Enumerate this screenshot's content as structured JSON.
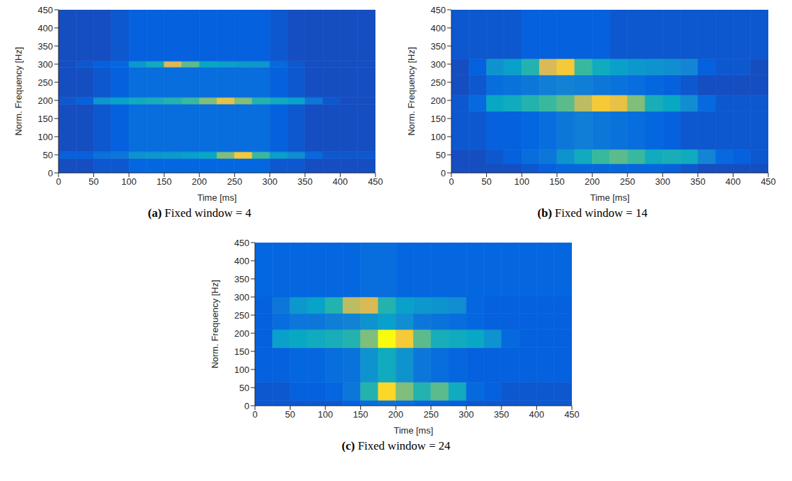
{
  "chart_data": [
    {
      "type": "heatmap",
      "letter": "(a)",
      "caption": "Fixed window = 4",
      "x_label": "Time [ms]",
      "y_label": "Norm. Frequency [Hz]",
      "xlim": [
        0,
        450
      ],
      "ylim": [
        0,
        450
      ],
      "xticks": [
        0,
        50,
        100,
        150,
        200,
        250,
        300,
        350,
        400,
        450
      ],
      "yticks": [
        0,
        50,
        100,
        150,
        200,
        250,
        300,
        350,
        400,
        450
      ],
      "x_edges": [
        0,
        25,
        50,
        75,
        100,
        125,
        150,
        175,
        200,
        225,
        250,
        275,
        300,
        325,
        350,
        375,
        400,
        425,
        450
      ],
      "y_edges": [
        0,
        40,
        58,
        190,
        208,
        292,
        308,
        450
      ],
      "cells": [
        [
          0.08,
          0.08,
          0.1,
          0.1,
          0.14,
          0.14,
          0.14,
          0.14,
          0.14,
          0.14,
          0.14,
          0.14,
          0.1,
          0.1,
          0.08,
          0.08,
          0.08,
          0.08
        ],
        [
          0.12,
          0.12,
          0.18,
          0.2,
          0.3,
          0.32,
          0.33,
          0.35,
          0.38,
          0.6,
          0.85,
          0.5,
          0.35,
          0.28,
          0.15,
          0.1,
          0.1,
          0.1
        ],
        [
          0.08,
          0.08,
          0.1,
          0.12,
          0.16,
          0.16,
          0.16,
          0.16,
          0.16,
          0.16,
          0.16,
          0.16,
          0.12,
          0.1,
          0.08,
          0.08,
          0.08,
          0.08
        ],
        [
          0.1,
          0.12,
          0.32,
          0.36,
          0.4,
          0.42,
          0.45,
          0.5,
          0.6,
          0.8,
          0.6,
          0.45,
          0.4,
          0.36,
          0.2,
          0.1,
          0.08,
          0.08
        ],
        [
          0.08,
          0.08,
          0.1,
          0.12,
          0.16,
          0.16,
          0.16,
          0.16,
          0.16,
          0.16,
          0.16,
          0.16,
          0.12,
          0.1,
          0.08,
          0.08,
          0.08,
          0.08
        ],
        [
          0.08,
          0.1,
          0.12,
          0.14,
          0.32,
          0.4,
          0.75,
          0.55,
          0.38,
          0.35,
          0.33,
          0.32,
          0.15,
          0.1,
          0.08,
          0.08,
          0.08,
          0.08
        ],
        [
          0.08,
          0.08,
          0.08,
          0.1,
          0.12,
          0.12,
          0.12,
          0.12,
          0.12,
          0.12,
          0.12,
          0.12,
          0.1,
          0.08,
          0.08,
          0.08,
          0.08,
          0.08
        ]
      ]
    },
    {
      "type": "heatmap",
      "letter": "(b)",
      "caption": "Fixed window = 14",
      "x_label": "Time [ms]",
      "y_label": "Norm. Frequency [Hz]",
      "xlim": [
        0,
        450
      ],
      "ylim": [
        0,
        450
      ],
      "xticks": [
        0,
        50,
        100,
        150,
        200,
        250,
        300,
        350,
        400,
        450
      ],
      "yticks": [
        0,
        50,
        100,
        150,
        200,
        250,
        300,
        350,
        400,
        450
      ],
      "x_edges": [
        0,
        25,
        50,
        75,
        100,
        125,
        150,
        175,
        200,
        225,
        250,
        275,
        300,
        325,
        350,
        375,
        400,
        425,
        450
      ],
      "y_edges": [
        0,
        25,
        65,
        170,
        215,
        270,
        315,
        450
      ],
      "cells": [
        [
          0.08,
          0.08,
          0.08,
          0.08,
          0.1,
          0.12,
          0.14,
          0.14,
          0.14,
          0.14,
          0.14,
          0.14,
          0.12,
          0.1,
          0.08,
          0.08,
          0.08,
          0.08
        ],
        [
          0.08,
          0.08,
          0.1,
          0.12,
          0.16,
          0.2,
          0.3,
          0.4,
          0.5,
          0.55,
          0.5,
          0.4,
          0.42,
          0.4,
          0.25,
          0.15,
          0.12,
          0.1
        ],
        [
          0.1,
          0.1,
          0.12,
          0.12,
          0.14,
          0.16,
          0.2,
          0.22,
          0.2,
          0.18,
          0.16,
          0.14,
          0.12,
          0.1,
          0.1,
          0.1,
          0.1,
          0.1
        ],
        [
          0.1,
          0.15,
          0.38,
          0.4,
          0.45,
          0.5,
          0.55,
          0.7,
          0.85,
          0.8,
          0.6,
          0.42,
          0.38,
          0.28,
          0.15,
          0.1,
          0.1,
          0.1
        ],
        [
          0.08,
          0.1,
          0.16,
          0.18,
          0.2,
          0.22,
          0.24,
          0.22,
          0.2,
          0.18,
          0.16,
          0.14,
          0.12,
          0.1,
          0.08,
          0.08,
          0.08,
          0.08
        ],
        [
          0.08,
          0.12,
          0.3,
          0.35,
          0.45,
          0.75,
          0.85,
          0.5,
          0.4,
          0.35,
          0.32,
          0.3,
          0.28,
          0.25,
          0.12,
          0.1,
          0.1,
          0.08
        ],
        [
          0.1,
          0.1,
          0.1,
          0.1,
          0.12,
          0.12,
          0.12,
          0.12,
          0.12,
          0.1,
          0.1,
          0.1,
          0.1,
          0.1,
          0.1,
          0.1,
          0.1,
          0.1
        ]
      ]
    },
    {
      "type": "heatmap",
      "letter": "(c)",
      "caption": "Fixed window = 24",
      "x_label": "Time [ms]",
      "y_label": "Norm. Frequency [Hz]",
      "xlim": [
        0,
        450
      ],
      "ylim": [
        0,
        450
      ],
      "xticks": [
        0,
        50,
        100,
        150,
        200,
        250,
        300,
        350,
        400,
        450
      ],
      "yticks": [
        0,
        50,
        100,
        150,
        200,
        250,
        300,
        350,
        400,
        450
      ],
      "x_edges": [
        0,
        25,
        50,
        75,
        100,
        125,
        150,
        175,
        200,
        225,
        250,
        275,
        300,
        325,
        350,
        375,
        400,
        425,
        450
      ],
      "y_edges": [
        0,
        15,
        65,
        160,
        210,
        255,
        300,
        450
      ],
      "cells": [
        [
          0.1,
          0.1,
          0.1,
          0.1,
          0.1,
          0.12,
          0.16,
          0.18,
          0.16,
          0.14,
          0.14,
          0.12,
          0.1,
          0.1,
          0.1,
          0.1,
          0.1,
          0.1
        ],
        [
          0.1,
          0.1,
          0.12,
          0.12,
          0.14,
          0.2,
          0.45,
          0.9,
          0.6,
          0.45,
          0.55,
          0.4,
          0.15,
          0.12,
          0.1,
          0.1,
          0.1,
          0.1
        ],
        [
          0.12,
          0.12,
          0.14,
          0.14,
          0.16,
          0.18,
          0.3,
          0.4,
          0.3,
          0.2,
          0.16,
          0.14,
          0.12,
          0.12,
          0.12,
          0.12,
          0.12,
          0.12
        ],
        [
          0.12,
          0.35,
          0.38,
          0.4,
          0.42,
          0.45,
          0.6,
          1.0,
          0.85,
          0.55,
          0.42,
          0.4,
          0.38,
          0.3,
          0.15,
          0.12,
          0.12,
          0.12
        ],
        [
          0.12,
          0.16,
          0.2,
          0.2,
          0.22,
          0.24,
          0.3,
          0.35,
          0.28,
          0.2,
          0.18,
          0.16,
          0.14,
          0.12,
          0.12,
          0.12,
          0.12,
          0.12
        ],
        [
          0.12,
          0.2,
          0.32,
          0.36,
          0.45,
          0.7,
          0.75,
          0.45,
          0.35,
          0.32,
          0.3,
          0.28,
          0.14,
          0.12,
          0.12,
          0.12,
          0.12,
          0.12
        ],
        [
          0.14,
          0.14,
          0.14,
          0.14,
          0.14,
          0.14,
          0.16,
          0.16,
          0.14,
          0.14,
          0.14,
          0.14,
          0.14,
          0.14,
          0.14,
          0.14,
          0.14,
          0.14
        ]
      ]
    }
  ]
}
